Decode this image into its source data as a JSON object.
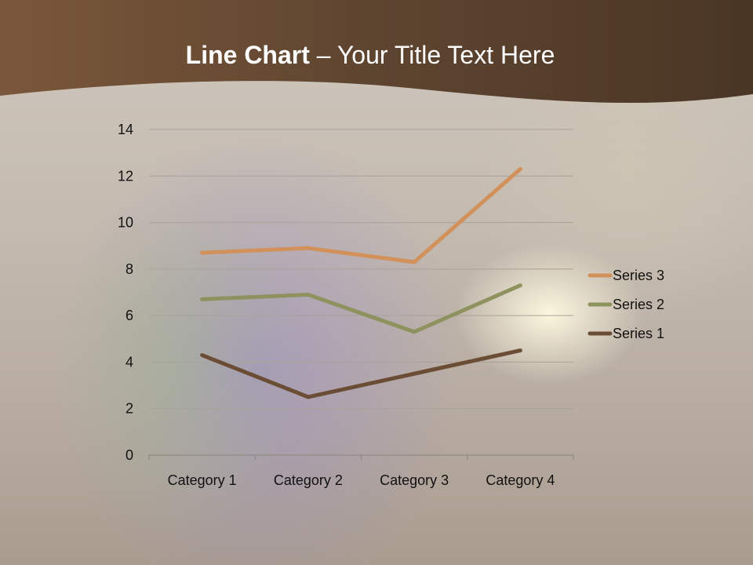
{
  "slide": {
    "title_bold": "Line Chart",
    "title_rest": " – Your Title Text Here"
  },
  "chart_data": {
    "type": "line",
    "stacked": true,
    "categories": [
      "Category 1",
      "Category 2",
      "Category 3",
      "Category 4"
    ],
    "series": [
      {
        "name": "Series 1",
        "values": [
          4.3,
          2.5,
          3.5,
          4.5
        ],
        "color": "#6B4C34"
      },
      {
        "name": "Series 2",
        "values": [
          2.4,
          4.4,
          1.8,
          2.8
        ],
        "color": "#8E925E"
      },
      {
        "name": "Series 3",
        "values": [
          2,
          2,
          3,
          5
        ],
        "color": "#D2915B"
      }
    ],
    "ylim": [
      0,
      14
    ],
    "yticks": [
      0,
      2,
      4,
      6,
      8,
      10,
      12,
      14
    ],
    "grid": true,
    "legend": "right",
    "title": "",
    "xlabel": "",
    "ylabel": ""
  }
}
